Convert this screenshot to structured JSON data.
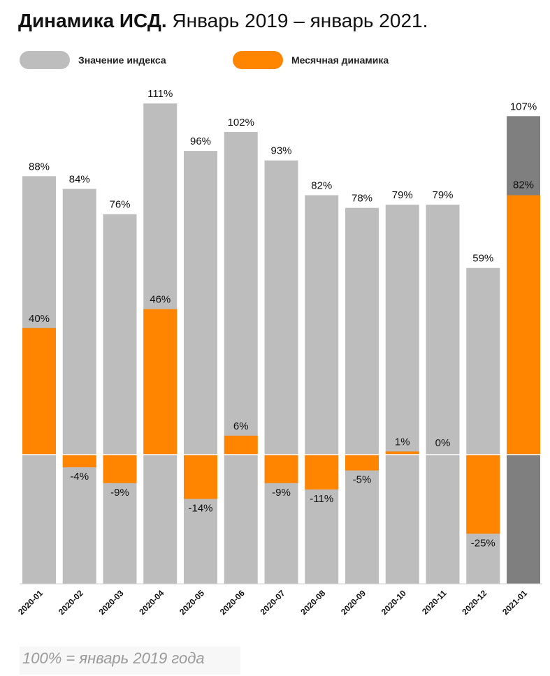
{
  "header": {
    "title_bold": "Динамика ИСД.",
    "title_rest": "Январь 2019 – январь 2021."
  },
  "legend": [
    {
      "label": "Значение индекса",
      "color": "#bdbdbd"
    },
    {
      "label": "Месячная динамика",
      "color": "#ff8500"
    }
  ],
  "footnote": "100% = январь 2019 года",
  "chart_data": {
    "type": "bar",
    "categories": [
      "2020-01",
      "2020-02",
      "2020-03",
      "2020-04",
      "2020-05",
      "2020-06",
      "2020-07",
      "2020-08",
      "2020-09",
      "2020-10",
      "2020-11",
      "2020-12",
      "2021-01"
    ],
    "series": [
      {
        "name": "Значение индекса",
        "values": [
          88,
          84,
          76,
          111,
          96,
          102,
          93,
          82,
          78,
          79,
          79,
          59,
          107
        ],
        "labels": [
          "88%",
          "84%",
          "76%",
          "111%",
          "96%",
          "102%",
          "93%",
          "82%",
          "78%",
          "79%",
          "79%",
          "59%",
          "107%"
        ],
        "color": "#bdbdbd",
        "highlight_color": "#7f7f7f"
      },
      {
        "name": "Месячная динамика",
        "values": [
          40,
          -4,
          -9,
          46,
          -14,
          6,
          -9,
          -11,
          -5,
          1,
          0,
          -25,
          82
        ],
        "labels": [
          "40%",
          "-4%",
          "-9%",
          "46%",
          "-14%",
          "6%",
          "-9%",
          "-11%",
          "-5%",
          "1%",
          "0%",
          "-25%",
          "82%"
        ],
        "color": "#ff8500"
      }
    ],
    "highlight_category": "2021-01",
    "grid": false
  }
}
